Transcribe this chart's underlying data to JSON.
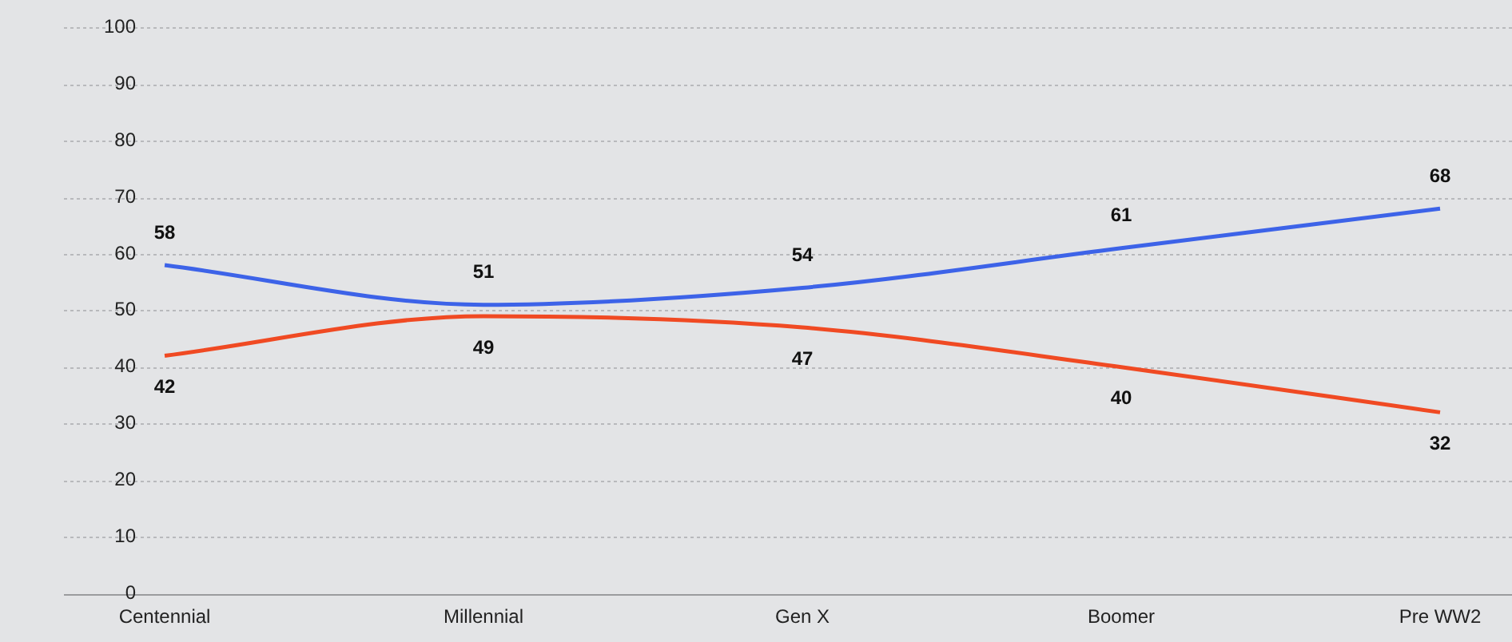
{
  "chart_data": {
    "type": "line",
    "categories": [
      "Centennial",
      "Millennial",
      "Gen X",
      "Boomer",
      "Pre WW2"
    ],
    "series": [
      {
        "color": "#3d63e8",
        "values": [
          58,
          51,
          54,
          61,
          68
        ]
      },
      {
        "color": "#f04a23",
        "values": [
          42,
          49,
          47,
          40,
          32
        ]
      }
    ],
    "ylim": [
      0,
      100
    ],
    "yticks": [
      0,
      10,
      20,
      30,
      40,
      50,
      60,
      70,
      80,
      90,
      100
    ],
    "grid": "y",
    "data_labels": true,
    "marker": "none",
    "legend": false
  }
}
